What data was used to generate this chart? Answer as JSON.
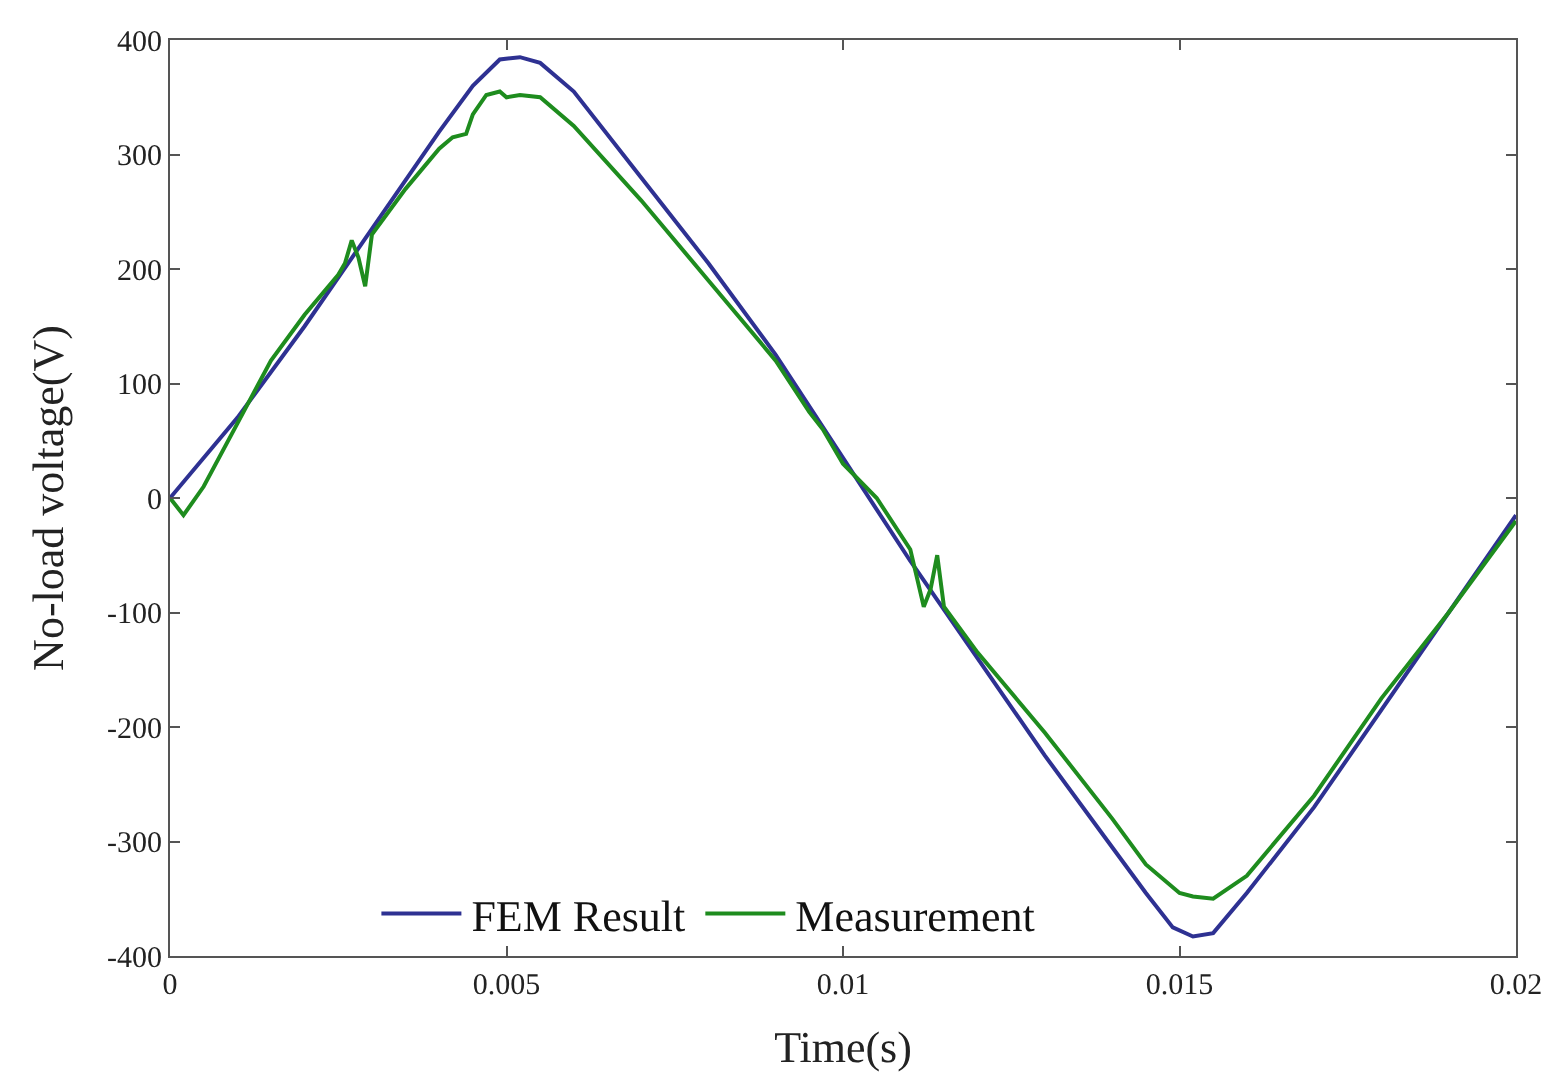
{
  "chart_data": {
    "type": "line",
    "xlabel": "Time(s)",
    "ylabel": "No-load voltage(V)",
    "xlim": [
      0,
      0.02
    ],
    "xticks": [
      0,
      0.005,
      0.01,
      0.015,
      0.02
    ],
    "ylim": [
      -400,
      400
    ],
    "yticks": [
      -400,
      -300,
      -200,
      -100,
      0,
      100,
      200,
      300,
      400
    ],
    "grid": false,
    "legend": "bottom",
    "marker": "none",
    "line_style": "solid",
    "series": [
      {
        "name": "FEM Result",
        "color": "#2e3192",
        "x": [
          0,
          0.001,
          0.002,
          0.003,
          0.004,
          0.0045,
          0.0049,
          0.0052,
          0.0055,
          0.006,
          0.007,
          0.008,
          0.009,
          0.01,
          0.011,
          0.012,
          0.013,
          0.014,
          0.0145,
          0.0149,
          0.0152,
          0.0155,
          0.016,
          0.017,
          0.018,
          0.019,
          0.02
        ],
        "values": [
          0,
          70,
          150,
          235,
          320,
          360,
          383,
          385,
          380,
          355,
          280,
          205,
          125,
          35,
          -55,
          -140,
          -225,
          -305,
          -345,
          -375,
          -383,
          -380,
          -345,
          -270,
          -185,
          -100,
          -15
        ]
      },
      {
        "name": "Measurement",
        "color": "#1e8c1e",
        "x": [
          0,
          0.0002,
          0.0005,
          0.001,
          0.0015,
          0.002,
          0.0025,
          0.0026,
          0.0027,
          0.0028,
          0.0029,
          0.003,
          0.0035,
          0.004,
          0.0042,
          0.0044,
          0.0045,
          0.0047,
          0.0049,
          0.005,
          0.0052,
          0.0055,
          0.006,
          0.007,
          0.008,
          0.009,
          0.0095,
          0.0097,
          0.01,
          0.0105,
          0.011,
          0.0111,
          0.0112,
          0.0113,
          0.0114,
          0.0115,
          0.012,
          0.013,
          0.014,
          0.0145,
          0.015,
          0.0152,
          0.0155,
          0.016,
          0.017,
          0.018,
          0.019,
          0.02
        ],
        "values": [
          0,
          -15,
          10,
          65,
          120,
          160,
          195,
          205,
          225,
          210,
          185,
          230,
          270,
          305,
          315,
          318,
          335,
          352,
          355,
          350,
          352,
          350,
          325,
          260,
          190,
          120,
          75,
          60,
          30,
          0,
          -45,
          -70,
          -95,
          -80,
          -50,
          -95,
          -135,
          -205,
          -280,
          -320,
          -345,
          -348,
          -350,
          -330,
          -260,
          -175,
          -100,
          -20
        ]
      }
    ]
  }
}
